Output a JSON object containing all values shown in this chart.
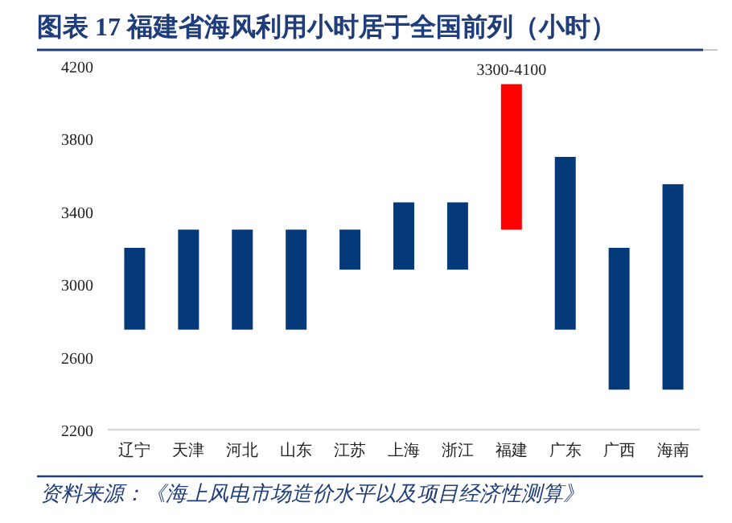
{
  "chart_data": {
    "type": "bar",
    "title": "图表 17  福建省海风利用小时居于全国前列（小时）",
    "categories": [
      "辽宁",
      "天津",
      "河北",
      "山东",
      "江苏",
      "上海",
      "浙江",
      "福建",
      "广东",
      "广西",
      "海南"
    ],
    "base": [
      2750,
      2750,
      2750,
      2750,
      3080,
      3080,
      3080,
      3300,
      2750,
      2420,
      2420
    ],
    "values": [
      450,
      550,
      550,
      550,
      220,
      370,
      370,
      800,
      950,
      780,
      1130
    ],
    "colors": [
      "#043a7a",
      "#043a7a",
      "#043a7a",
      "#043a7a",
      "#043a7a",
      "#043a7a",
      "#043a7a",
      "#ff0000",
      "#043a7a",
      "#043a7a",
      "#043a7a"
    ],
    "value_labels": [
      null,
      null,
      null,
      null,
      null,
      null,
      null,
      "3300-4100",
      null,
      null,
      null
    ],
    "ylim": [
      2200,
      4200
    ],
    "yticks": [
      2200,
      2600,
      3000,
      3400,
      3800,
      4200
    ],
    "annotations": [
      "资料来源：《海上风电市场造价水平以及项目经济性测算》"
    ]
  }
}
